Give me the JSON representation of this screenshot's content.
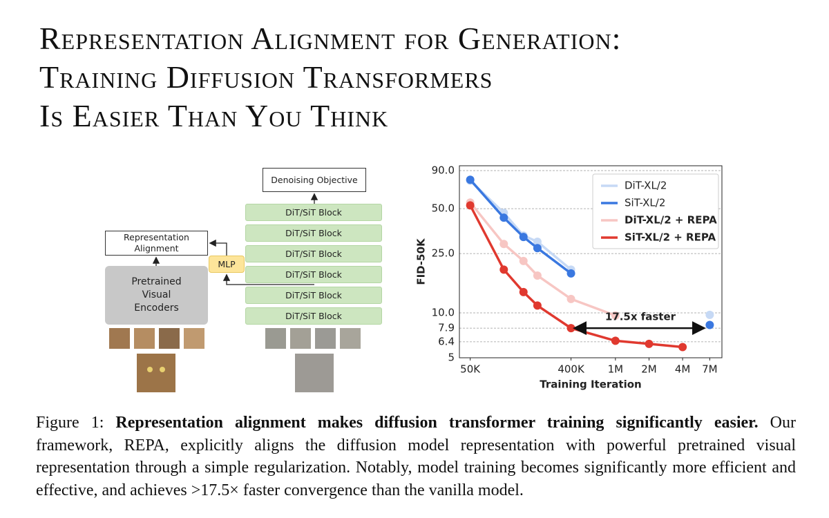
{
  "title": {
    "lines": [
      "Representation Alignment for Generation:",
      "Training Diffusion Transformers",
      "Is Easier Than You Think"
    ]
  },
  "diagram": {
    "objective": "Denoising Objective",
    "blocks": [
      "DiT/SiT Block",
      "DiT/SiT Block",
      "DiT/SiT Block",
      "DiT/SiT Block",
      "DiT/SiT Block",
      "DiT/SiT Block"
    ],
    "alignment": "Representation Alignment",
    "mlp": "MLP",
    "encoder": "Pretrained Visual Encoders"
  },
  "chart_data": {
    "type": "line",
    "ylabel": "FID-50K",
    "xlabel": "Training Iteration",
    "log_x": true,
    "log_y": true,
    "grid": true,
    "legend": "upper right",
    "x": [
      50000,
      100000,
      150000,
      200000,
      400000,
      1000000,
      2000000,
      4000000,
      7000000
    ],
    "xlim": [
      40000,
      9000000
    ],
    "xticks": [
      {
        "value": 50000,
        "label": "50K"
      },
      {
        "value": 400000,
        "label": "400K"
      },
      {
        "value": 1000000,
        "label": "1M"
      },
      {
        "value": 2000000,
        "label": "2M"
      },
      {
        "value": 4000000,
        "label": "4M"
      },
      {
        "value": 7000000,
        "label": "7M"
      }
    ],
    "ylim": [
      5,
      97
    ],
    "yticks": [
      5,
      6.4,
      7.9,
      {
        "value": 10,
        "label": "10.0"
      },
      {
        "value": 25,
        "label": "25.0"
      },
      {
        "value": 50,
        "label": "50.0"
      },
      {
        "value": 90,
        "label": "90.0"
      }
    ],
    "series": [
      {
        "name": "DiT-XL/2",
        "color": "#c6d9f5",
        "values": [
          77,
          46.9,
          33,
          30,
          19.5,
          null,
          null,
          null,
          9.7
        ]
      },
      {
        "name": "SiT-XL/2",
        "color": "#3a78e0",
        "values": [
          78.2,
          43.5,
          32.3,
          27.2,
          18.4,
          null,
          null,
          null,
          8.3
        ]
      },
      {
        "name": "DiT-XL/2 + REPA",
        "color": "#f7c6c3",
        "values": [
          55,
          29,
          22.3,
          17.8,
          12.4,
          9.6,
          null,
          null,
          null
        ]
      },
      {
        "name": "SiT-XL/2 + REPA",
        "color": "#e0392f",
        "values": [
          52.6,
          19.5,
          13.8,
          11.2,
          7.9,
          6.5,
          6.2,
          5.9,
          null
        ]
      }
    ],
    "annotation": "17.5x faster"
  },
  "caption": {
    "label": "Figure 1:",
    "bold": "Representation alignment makes diffusion transformer training significantly easier.",
    "text": "Our framework, REPA, explicitly aligns the diffusion model representation with powerful pretrained visual representation through a simple regularization. Notably, model training becomes significantly more efficient and effective, and achieves >17.5× faster convergence than the vanilla model."
  }
}
